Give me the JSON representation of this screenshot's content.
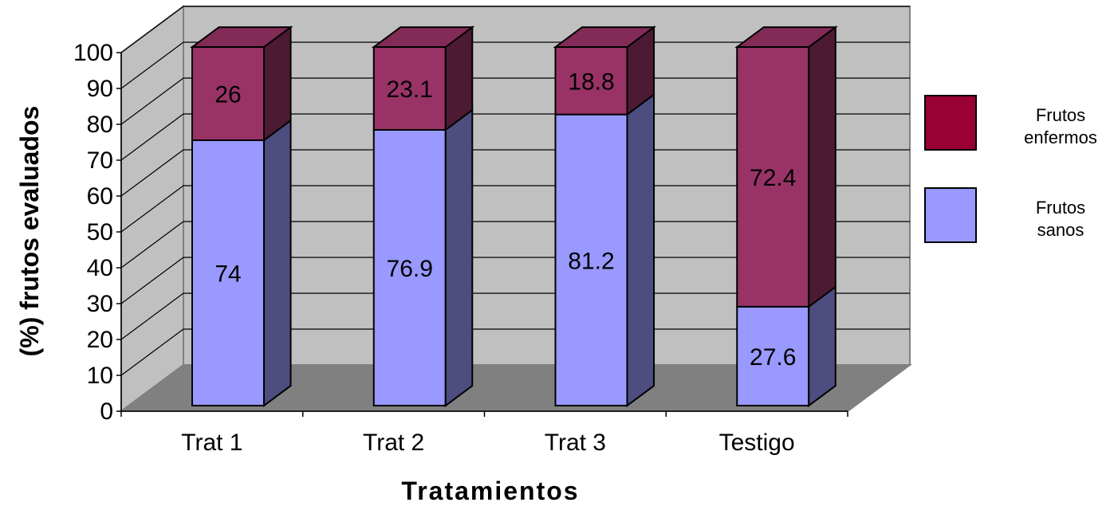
{
  "chart_data": {
    "type": "bar",
    "stacked": true,
    "three_d": true,
    "categories": [
      "Trat 1",
      "Trat 2",
      "Trat 3",
      "Testigo"
    ],
    "series": [
      {
        "name": "Frutos sanos",
        "values": [
          74,
          76.9,
          81.2,
          27.6
        ],
        "color": "#9999FF",
        "value_labels": [
          "74",
          "76.9",
          "81.2",
          "27.6"
        ]
      },
      {
        "name": "Frutos enfermos",
        "values": [
          26,
          23.1,
          18.8,
          72.4
        ],
        "color": "#993366",
        "value_labels": [
          "26",
          "23.1",
          "18.8",
          "72.4"
        ]
      }
    ],
    "legend_swatch_colors": [
      "#990033",
      "#9999FF"
    ],
    "xlabel": "Tratamientos",
    "ylabel": "(%) frutos evaluados",
    "ylim": [
      0,
      100
    ],
    "yticks": [
      "0",
      "10",
      "20",
      "30",
      "40",
      "50",
      "60",
      "70",
      "80",
      "90",
      "100"
    ],
    "grid": true,
    "legend_position": "right",
    "wall_color": "#C0C0C0",
    "floor_color": "#808080"
  }
}
